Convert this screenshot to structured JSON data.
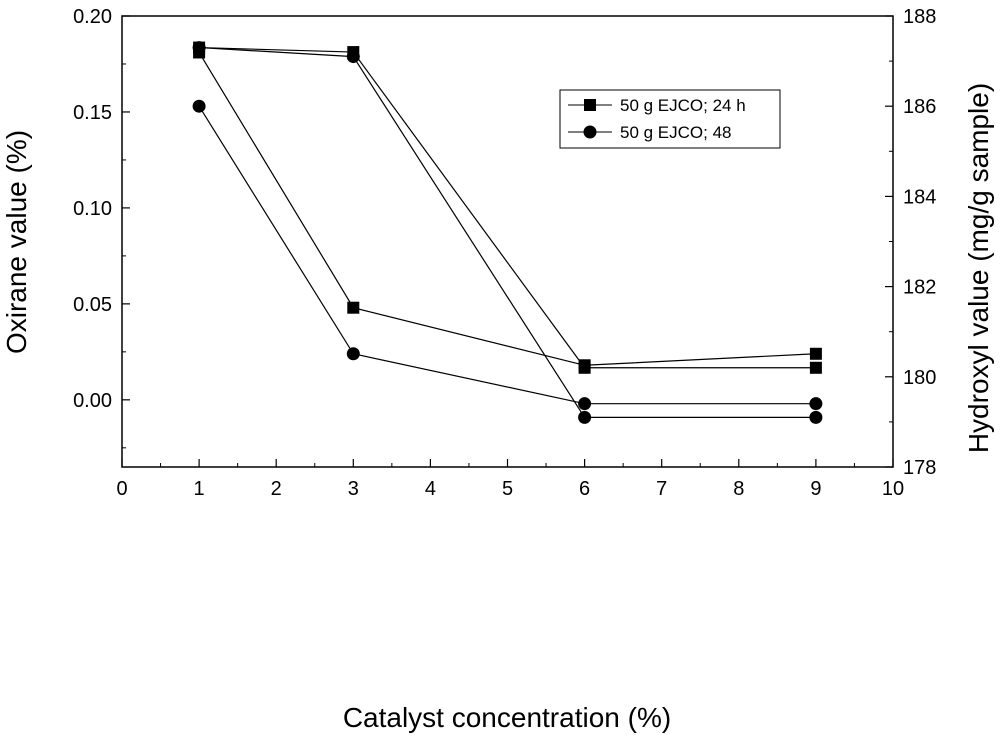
{
  "chart_data": {
    "type": "line",
    "xlabel": "Catalyst concentration (%)",
    "ylabel": "Oxirane value (%)",
    "y2label": "Hydroxyl value (mg/g sample)",
    "xlim": [
      0,
      10
    ],
    "ylim": [
      -0.035,
      0.2
    ],
    "y2lim": [
      178,
      188
    ],
    "x_ticks": [
      0,
      1,
      2,
      3,
      4,
      5,
      6,
      7,
      8,
      9,
      10
    ],
    "y_ticks": [
      "0.00",
      "0.05",
      "0.10",
      "0.15",
      "0.20"
    ],
    "y2_ticks": [
      "178",
      "180",
      "182",
      "184",
      "186",
      "188"
    ],
    "grid": false,
    "legend_position": "top-right",
    "series": [
      {
        "name": "50 g EJCO; 24 h",
        "marker": "square",
        "axis": "left",
        "x": [
          1,
          3,
          6,
          9
        ],
        "values": [
          0.181,
          0.048,
          0.018,
          0.024
        ]
      },
      {
        "name": "50 g EJCO; 48",
        "marker": "circle",
        "axis": "left",
        "x": [
          1,
          3,
          6,
          9
        ],
        "values": [
          0.153,
          0.024,
          -0.002,
          -0.002
        ]
      },
      {
        "name": "50 g EJCO; 24 h",
        "marker": "square",
        "axis": "right",
        "x": [
          1,
          3,
          6,
          9
        ],
        "values": [
          187.3,
          187.2,
          180.2,
          180.2
        ]
      },
      {
        "name": "50 g EJCO; 48",
        "marker": "circle",
        "axis": "right",
        "x": [
          1,
          3,
          6,
          9
        ],
        "values": [
          187.3,
          187.1,
          179.1,
          179.1
        ]
      }
    ],
    "legend": [
      {
        "label": "50 g EJCO; 24 h",
        "marker": "square"
      },
      {
        "label": "50 g EJCO; 48",
        "marker": "circle"
      }
    ]
  }
}
